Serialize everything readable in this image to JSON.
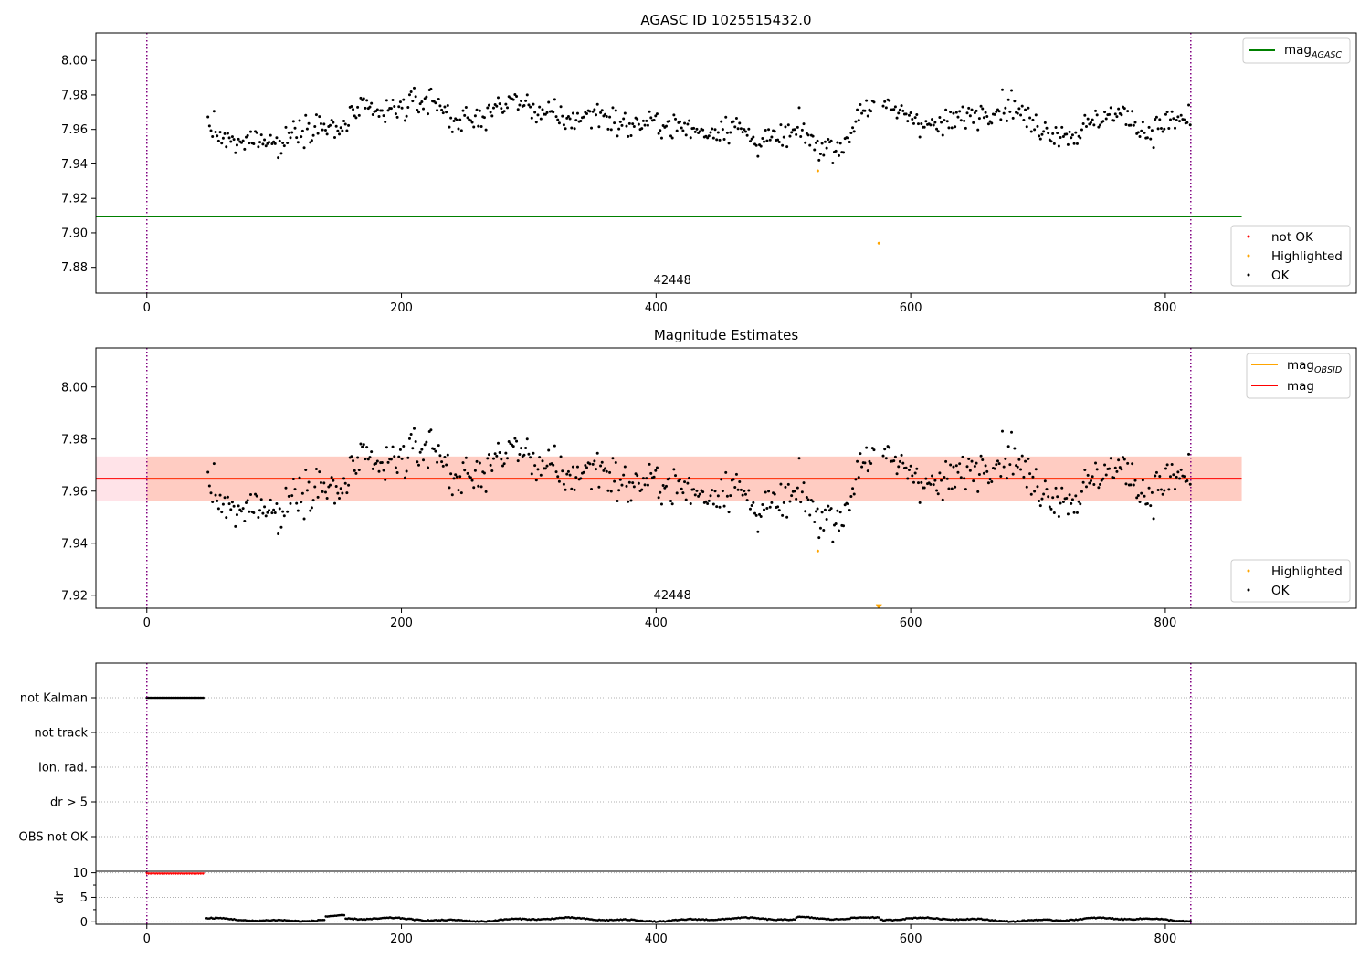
{
  "colors": {
    "ok": "#000000",
    "not_ok": "#ff0000",
    "highlighted": "#ffa500",
    "mag_agasc": "#008000",
    "mag_obsid": "#ffa500",
    "mag": "#ff0000",
    "obs_boundary": "#800080",
    "band_outer": "#ffc0cb",
    "band_inner": "#ffa07a"
  },
  "chart_data": [
    {
      "type": "scatter",
      "title": "AGASC ID 1025515432.0",
      "xlim": [
        -40,
        950
      ],
      "ylim": [
        7.865,
        8.016
      ],
      "x_ticks": [
        0,
        200,
        400,
        600,
        800
      ],
      "x_tick_labels": [
        "0",
        "200",
        "400",
        "600",
        "800"
      ],
      "y_ticks": [
        7.88,
        7.9,
        7.92,
        7.94,
        7.96,
        7.98,
        8.0
      ],
      "y_tick_labels": [
        "7.88",
        "7.90",
        "7.92",
        "7.94",
        "7.96",
        "7.98",
        "8.00"
      ],
      "obs_boundaries": [
        0,
        820
      ],
      "obsid_label": "42448",
      "obsid_label_x": 410,
      "mag_agasc": {
        "value": 7.9095,
        "x_start": -40,
        "x_end": 860
      },
      "highlighted_points": [
        [
          527,
          7.936
        ],
        [
          575,
          7.894
        ]
      ],
      "legend_lines": [
        {
          "label": "mag",
          "sub": "AGASC"
        }
      ],
      "legend_points": [
        "not OK",
        "Highlighted",
        "OK"
      ]
    },
    {
      "type": "scatter",
      "title": "Magnitude Estimates",
      "xlim": [
        -40,
        950
      ],
      "ylim": [
        7.915,
        8.015
      ],
      "x_ticks": [
        0,
        200,
        400,
        600,
        800
      ],
      "x_tick_labels": [
        "0",
        "200",
        "400",
        "600",
        "800"
      ],
      "y_ticks": [
        7.92,
        7.94,
        7.96,
        7.98,
        8.0
      ],
      "y_tick_labels": [
        "7.92",
        "7.94",
        "7.96",
        "7.98",
        "8.00"
      ],
      "obs_boundaries": [
        0,
        820
      ],
      "obsid_label": "42448",
      "obsid_label_x": 410,
      "mag": 7.9648,
      "mag_obsid": 7.9648,
      "band_outer": [
        7.9563,
        7.9733
      ],
      "band_inner": [
        7.9563,
        7.9733
      ],
      "band_x": [
        -40,
        860
      ],
      "highlighted_points": [
        [
          527,
          7.937
        ]
      ],
      "offscale_marker": [
        575,
        7.9155
      ],
      "legend_lines": [
        {
          "label": "mag",
          "sub": "OBSID"
        },
        {
          "label": "mag",
          "sub": ""
        }
      ],
      "legend_points": [
        "Highlighted",
        "OK"
      ]
    },
    {
      "type": "scatter",
      "title": "",
      "xlim": [
        -40,
        950
      ],
      "categories": [
        "not Kalman",
        "not track",
        "Ion. rad.",
        "dr > 5",
        "OBS not OK"
      ],
      "flag_ranges": [
        {
          "category": "not Kalman",
          "x_start": 0,
          "x_end": 45
        }
      ],
      "obs_boundaries": [
        0,
        820
      ]
    },
    {
      "type": "scatter",
      "ylabel": "dr",
      "xlim": [
        -40,
        950
      ],
      "ylim": [
        -0.5,
        10.3
      ],
      "x_ticks": [
        0,
        200,
        400,
        600,
        800
      ],
      "x_tick_labels": [
        "0",
        "200",
        "400",
        "600",
        "800"
      ],
      "y_ticks": [
        0,
        5,
        10
      ],
      "y_tick_labels": [
        "0",
        "5",
        "10"
      ],
      "clipped_range": {
        "x_start": 0,
        "x_end": 45,
        "y": 9.8
      },
      "ok_range": {
        "x_start": 47,
        "x_end": 820
      },
      "obs_boundaries": [
        0,
        820
      ]
    }
  ]
}
